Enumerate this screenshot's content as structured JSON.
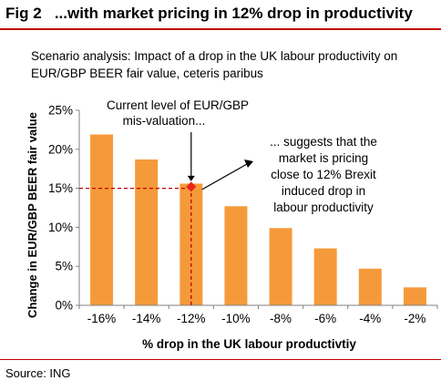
{
  "figure": {
    "title": "Fig 2   ...with market pricing in 12% drop in productivity",
    "subtitle": "Scenario analysis: Impact of a drop in the UK labour productivity on EUR/GBP BEER fair value, ceteris paribus",
    "source": "Source: ING"
  },
  "colors": {
    "bar": "#f59a3a",
    "accent": "#c00000",
    "marker": "#e8241a",
    "rule": "#c00000"
  },
  "annotations": {
    "current_level": "Current level of EUR/GBP mis-valuation...",
    "suggests": "... suggests that the market is pricing close to 12% Brexit induced drop in labour productivity"
  },
  "chart_data": {
    "type": "bar",
    "categories": [
      "-16%",
      "-14%",
      "-12%",
      "-10%",
      "-8%",
      "-6%",
      "-4%",
      "-2%"
    ],
    "values": [
      21.9,
      18.7,
      15.6,
      12.7,
      9.9,
      7.3,
      4.7,
      2.3
    ],
    "xlabel": "% drop in the UK labour productivtiy",
    "ylabel": "Change in EUR/GBP BEER fair value",
    "ylim": [
      0,
      25
    ],
    "yticks": [
      0,
      5,
      10,
      15,
      20,
      25
    ],
    "ytick_labels": [
      "0%",
      "5%",
      "10%",
      "15%",
      "20%",
      "25%"
    ],
    "grid": false,
    "marker": {
      "category": "-12%",
      "value": 15.2
    },
    "reference_line": {
      "value": 15.0,
      "style": "dashed"
    }
  }
}
